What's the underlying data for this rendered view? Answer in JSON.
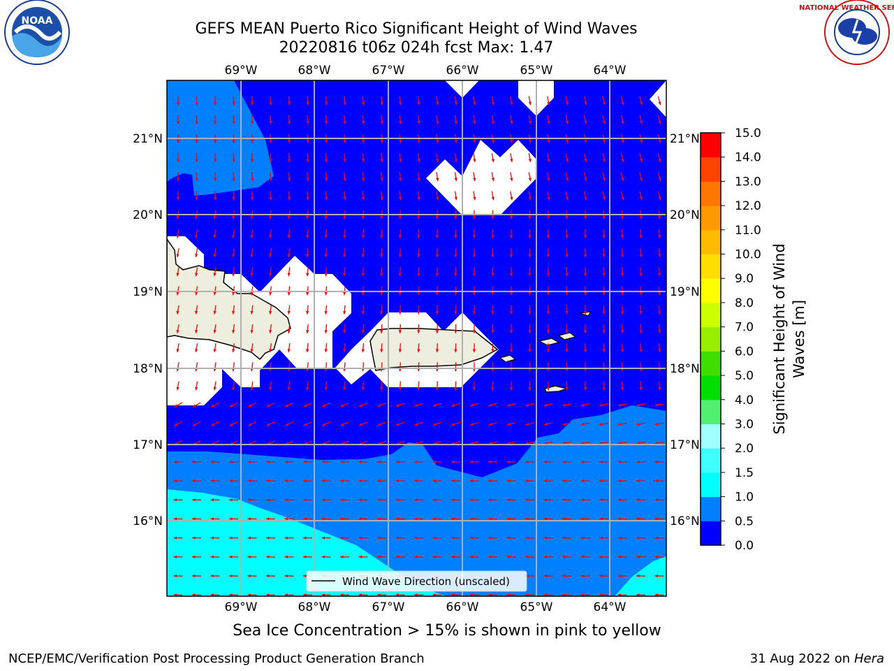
{
  "title_line1": "GEFS MEAN Puerto Rico Significant Height of Wind Waves",
  "title_line2": "20220816 t06z 024h fcst   Max: 1.47",
  "logos": {
    "left": "noaa-logo",
    "right": "national-weather-service-logo",
    "left_text": "NOAA",
    "right_text": "NATIONAL WEATHER SERVICE"
  },
  "longitude_ticks": [
    "69°W",
    "68°W",
    "67°W",
    "66°W",
    "65°W",
    "64°W"
  ],
  "latitude_ticks": [
    "21°N",
    "20°N",
    "19°N",
    "18°N",
    "17°N",
    "16°N"
  ],
  "legend_label": "Wind Wave Direction (unscaled)",
  "colorbar": {
    "label": "Significant Height of Wind Waves [m]",
    "label_line1": "Significant Height of Wind",
    "label_line2": "Waves [m]",
    "ticks": [
      "0.0",
      "0.5",
      "1.0",
      "1.5",
      "2.0",
      "3.0",
      "4.0",
      "5.0",
      "6.0",
      "7.0",
      "8.0",
      "9.0",
      "10.0",
      "11.0",
      "12.0",
      "13.0",
      "14.0",
      "15.0"
    ],
    "colors": [
      "#0000ff",
      "#0080ff",
      "#00ffff",
      "#40ffff",
      "#a0ffff",
      "#50f070",
      "#00dd00",
      "#40dd00",
      "#99ee00",
      "#ccff00",
      "#ffff00",
      "#ffdd00",
      "#ffbb00",
      "#ff9900",
      "#ff7700",
      "#ff4400",
      "#ff0000"
    ]
  },
  "caption": "Sea Ice Concentration > 15% is shown in pink to yellow",
  "footer_left": "NCEP/EMC/Verification Post Processing Product Generation Branch",
  "footer_date": "31 Aug 2022 on",
  "footer_host": "Hera",
  "map_colors": {
    "band_0_0_5": "#0000ff",
    "band_0_5_1_0": "#0080ff",
    "band_1_0_1_5": "#00ffff",
    "land": "#eeeedf",
    "arrow": "#ff0000",
    "grid": "#b0b0b0"
  }
}
